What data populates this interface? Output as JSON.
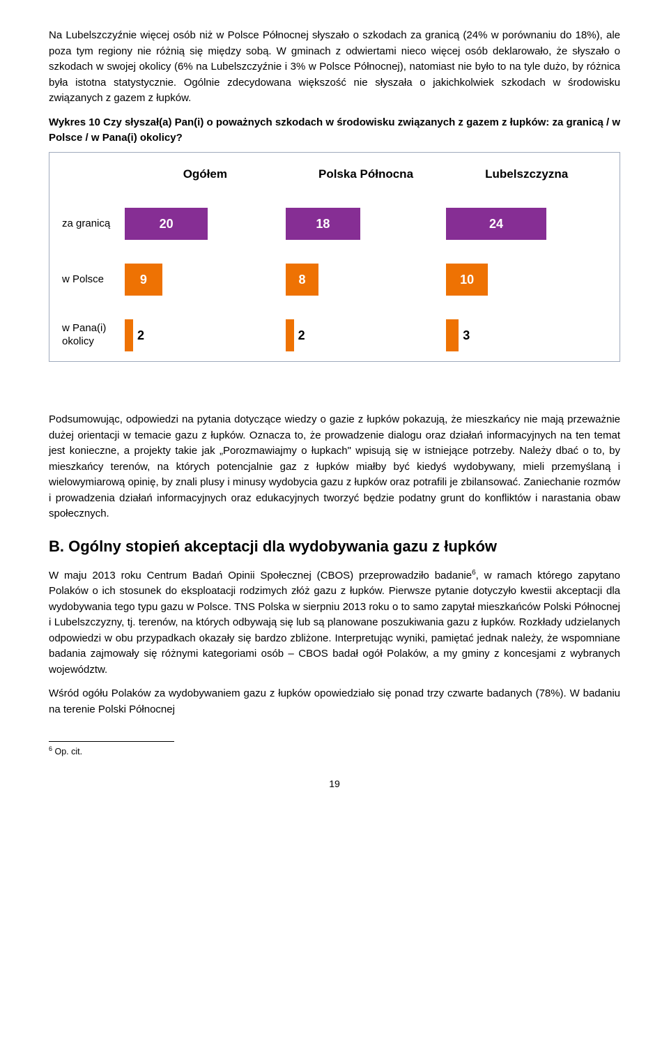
{
  "para1": "Na Lubelszczyźnie więcej osób niż w Polsce Północnej słyszało o szkodach za granicą (24% w porównaniu do 18%), ale poza tym regiony nie różnią się między sobą. W gminach z odwiertami nieco więcej osób deklarowało, że słyszało o szkodach w swojej okolicy (6% na Lubelszczyźnie i 3% w Polsce Północnej), natomiast nie było to na tyle dużo, by różnica była istotna statystycznie. Ogólnie zdecydowana większość nie słyszała o jakichkolwiek szkodach w środowisku związanych z gazem z łupków.",
  "chart_caption": "Wykres 10 Czy słyszał(a) Pan(i) o poważnych szkodach w środowisku związanych z gazem z łupków: za granicą / w Polsce / w Pana(i) okolicy?",
  "chart": {
    "headers": [
      "Ogółem",
      "Polska Północna",
      "Lubelszczyzna"
    ],
    "rows": [
      {
        "label": "za granicą",
        "values": [
          20,
          18,
          24
        ],
        "color": "#862e94",
        "max": 24
      },
      {
        "label": "w Polsce",
        "values": [
          9,
          8,
          10
        ],
        "color": "#ee7203",
        "max": 24
      },
      {
        "label": "w Pana(i) okolicy",
        "values": [
          2,
          2,
          3
        ],
        "color": "#ee7203",
        "max": 24
      }
    ],
    "bar_full_pct": 68
  },
  "para2": "Podsumowując, odpowiedzi na pytania dotyczące wiedzy o gazie z łupków pokazują, że mieszkańcy nie mają przeważnie dużej orientacji w temacie gazu z łupków. Oznacza to, że prowadzenie dialogu oraz działań informacyjnych na ten temat jest konieczne, a projekty takie jak „Porozmawiajmy o łupkach\" wpisują się w istniejące potrzeby. Należy dbać o to, by mieszkańcy terenów, na których potencjalnie gaz z łupków miałby być kiedyś wydobywany, mieli przemyślaną i wielowymiarową opinię, by znali plusy i minusy wydobycia gazu z łupków oraz potrafili je zbilansować. Zaniechanie rozmów i prowadzenia działań informacyjnych oraz edukacyjnych tworzyć będzie podatny grunt do konfliktów i narastania obaw społecznych.",
  "section_letter": "B.",
  "section_title": "Ogólny stopień akceptacji dla wydobywania gazu z łupków",
  "para3_pre": "W maju 2013 roku Centrum Badań Opinii Społecznej (CBOS) przeprowadziło badanie",
  "para3_sup": "6",
  "para3_post": ", w ramach którego zapytano Polaków o ich stosunek do eksploatacji rodzimych złóż gazu z łupków. Pierwsze pytanie dotyczyło kwestii akceptacji dla wydobywania tego typu gazu w Polsce. TNS Polska w sierpniu 2013 roku o to samo zapytał mieszkańców Polski Północnej i Lubelszczyzny, tj. terenów, na których odbywają się lub są planowane poszukiwania gazu z łupków. Rozkłady udzielanych odpowiedzi w obu przypadkach okazały się bardzo zbliżone. Interpretując wyniki, pamiętać jednak należy, że wspomniane badania zajmowały się różnymi kategoriami osób – CBOS badał ogół Polaków, a my gminy z koncesjami z wybranych województw.",
  "para4": "Wśród ogółu Polaków za wydobywaniem gazu z łupków opowiedziało się ponad trzy czwarte badanych (78%). W badaniu na terenie Polski Północnej",
  "footnote_num": "6",
  "footnote_text": " Op. cit.",
  "page_number": "19"
}
